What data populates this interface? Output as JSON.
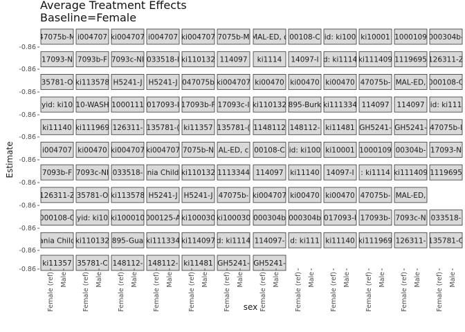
{
  "chart_data": {
    "type": "scatter",
    "title_lines": [
      "Average Treatment Effects",
      "Baseline=Female"
    ],
    "xlabel": "sex",
    "ylabel": "Estimate",
    "x_categories": [
      "Female (ref)",
      "Male"
    ],
    "y_tick_labels": [
      "-0.86",
      "-0.86",
      "-0.86",
      "-0.86",
      "-0.86",
      "-0.86",
      "-0.86",
      "-0.86",
      "-0.86",
      "-0.86",
      "-0.86",
      "-0.86",
      "-0.86",
      "-0.86",
      "-0.86",
      "-0.86",
      "-0.86"
    ],
    "facet_rows": [
      [
        "47075b-M",
        "i004707",
        "ki004707",
        "i004707",
        "ki004707",
        "7075b-M",
        "MAL-ED, c",
        "00108-C",
        "id: ki100",
        "ki10001",
        "1000109",
        "000304b-"
      ],
      [
        "17093-N",
        "7093b-F",
        "7093c-NI",
        "033518-I",
        "ki110132",
        "114097",
        "ki1114",
        "14097-I",
        "d: ki1114",
        "ki111409",
        "1119695",
        "126311-Z"
      ],
      [
        "35781-O",
        "ki113578",
        "H5241-J",
        "H5241-J",
        "047075b",
        "ki004707",
        "ki00470",
        "ki00470",
        "ki00470",
        "47075b-",
        "MAL-ED,",
        "000108-C"
      ],
      [
        "yid: ki10",
        "10-WASH",
        "1000111",
        "017093-I",
        "17093b-F",
        "17093c-I",
        "ki110132",
        "895-Burk",
        "ki111334",
        "114097",
        "114097",
        "id: ki111"
      ],
      [
        "ki11140",
        "ki111969",
        "126311-",
        "135781-(",
        "ki11357",
        "135781-(",
        "1148112",
        "148112-",
        "ki11481",
        "GH5241-",
        "GH5241-",
        "47075b-l"
      ],
      [
        "i004707",
        "ki00470",
        "ki004707",
        "ki004707",
        "7075b-N",
        "AL-ED, c",
        "00108-C",
        "id: ki100",
        "ki10001",
        "1000109",
        "00304b-",
        "17093-N"
      ],
      [
        "7093b-F",
        "7093c-NI",
        "033518-",
        "nia Child",
        "ki110132",
        "1113344",
        "114097",
        "ki11140",
        "14097-I",
        ": ki1114",
        "ki111409",
        "1119695"
      ],
      [
        "126311-Z",
        "35781-O",
        "ki113578",
        "H5241-J",
        "H5241-J",
        "47075b-",
        "ki004707",
        "ki00470",
        "ki00470",
        "47075b-",
        "MAL-ED,",
        ""
      ],
      [
        "000108-C",
        "yid: ki10",
        "ki100010",
        "000125-A",
        "ki100030",
        "ki100030",
        "000304b",
        "000304b",
        "017093-I",
        "17093b-",
        "7093c-N",
        "033518-"
      ],
      [
        "ania Child",
        "ki110132",
        "895-Gua",
        "ki111334",
        "ki114097",
        "d: ki1114",
        "114097-",
        "d: ki111",
        "ki11140",
        "ki111969",
        "126311-",
        "135781-C"
      ],
      [
        "ki11357",
        "35781-C",
        "148112-",
        "148112-",
        "ki11481",
        "GH5241-",
        "GH5241-",
        "",
        "",
        "",
        "",
        ""
      ]
    ]
  }
}
